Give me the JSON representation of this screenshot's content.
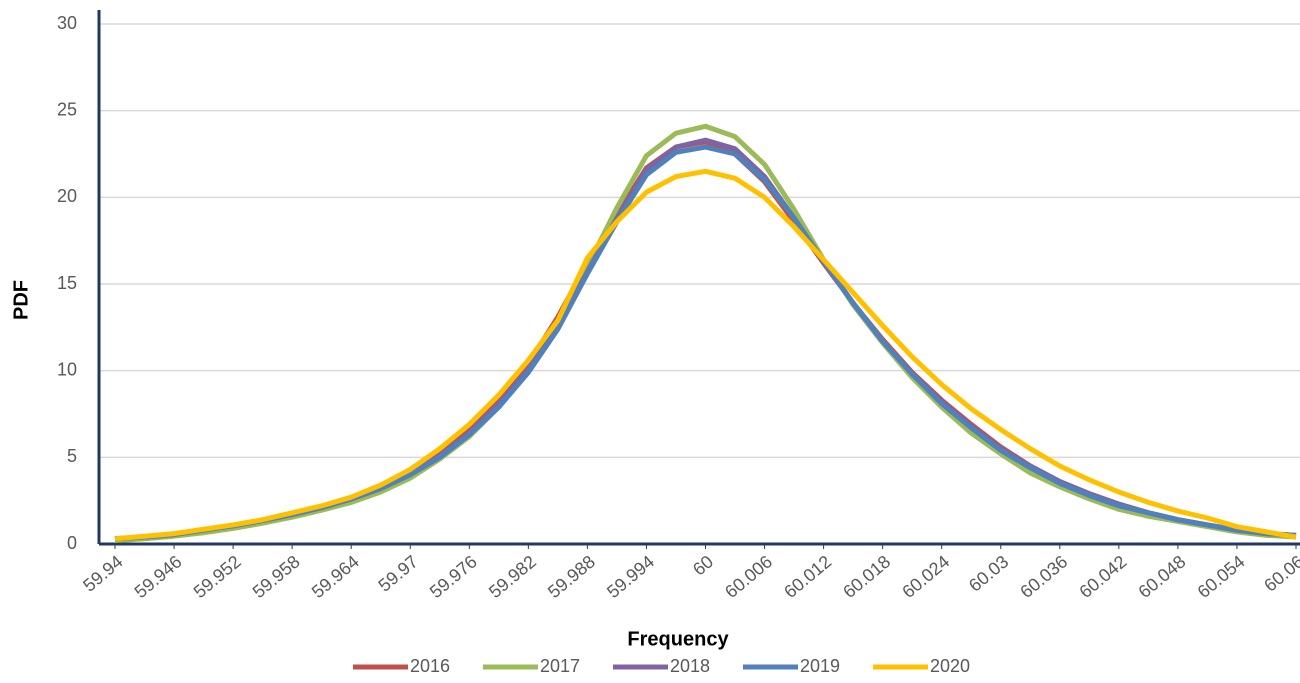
{
  "chart_data": {
    "type": "line",
    "x_label": "Frequency",
    "y_label": "PDF",
    "x": [
      59.94,
      59.943,
      59.946,
      59.949,
      59.952,
      59.955,
      59.958,
      59.961,
      59.964,
      59.967,
      59.97,
      59.973,
      59.976,
      59.979,
      59.982,
      59.985,
      59.988,
      59.991,
      59.994,
      59.997,
      60,
      60.003,
      60.006,
      60.009,
      60.012,
      60.015,
      60.018,
      60.021,
      60.024,
      60.027,
      60.03,
      60.033,
      60.036,
      60.039,
      60.042,
      60.045,
      60.048,
      60.051,
      60.054,
      60.057,
      60.06
    ],
    "xlim": [
      59.94,
      60.06
    ],
    "xticks": [
      59.94,
      59.946,
      59.952,
      59.958,
      59.964,
      59.97,
      59.976,
      59.982,
      59.988,
      59.994,
      60,
      60.006,
      60.012,
      60.018,
      60.024,
      60.03,
      60.036,
      60.042,
      60.048,
      60.054,
      60.06
    ],
    "ylim": [
      0,
      30
    ],
    "yticks": [
      0,
      5,
      10,
      15,
      20,
      25,
      30
    ],
    "grid": true,
    "legend": "bottom",
    "series": [
      {
        "name": "2016",
        "color": "#c0504d",
        "values": [
          0.3,
          0.4,
          0.55,
          0.8,
          1.05,
          1.35,
          1.7,
          2.1,
          2.6,
          3.2,
          4.1,
          5.2,
          6.6,
          8.3,
          10.4,
          13.1,
          16.2,
          19.0,
          21.7,
          22.9,
          23.2,
          22.5,
          20.9,
          18.6,
          16.2,
          13.9,
          11.8,
          9.9,
          8.3,
          6.9,
          5.6,
          4.5,
          3.6,
          2.9,
          2.3,
          1.8,
          1.4,
          1.1,
          0.8,
          0.6,
          0.5
        ]
      },
      {
        "name": "2017",
        "color": "#9bbb59",
        "values": [
          0.2,
          0.3,
          0.45,
          0.65,
          0.9,
          1.2,
          1.55,
          1.95,
          2.4,
          3.0,
          3.8,
          4.9,
          6.2,
          7.9,
          10.0,
          12.7,
          16.0,
          19.4,
          22.4,
          23.7,
          24.1,
          23.5,
          21.9,
          19.3,
          16.4,
          13.8,
          11.6,
          9.6,
          7.9,
          6.4,
          5.2,
          4.1,
          3.3,
          2.6,
          2.0,
          1.6,
          1.3,
          1.0,
          0.7,
          0.5,
          0.4
        ]
      },
      {
        "name": "2018",
        "color": "#8064a2",
        "values": [
          0.3,
          0.4,
          0.55,
          0.8,
          1.05,
          1.35,
          1.7,
          2.1,
          2.6,
          3.2,
          4.0,
          5.1,
          6.4,
          8.1,
          10.1,
          12.6,
          15.7,
          18.8,
          21.6,
          22.9,
          23.3,
          22.8,
          21.2,
          18.8,
          16.3,
          13.9,
          11.7,
          9.8,
          8.2,
          6.8,
          5.5,
          4.5,
          3.6,
          2.9,
          2.3,
          1.8,
          1.4,
          1.1,
          0.8,
          0.6,
          0.5
        ]
      },
      {
        "name": "2019",
        "color": "#4f81bd",
        "values": [
          0.3,
          0.4,
          0.55,
          0.8,
          1.05,
          1.35,
          1.7,
          2.1,
          2.6,
          3.2,
          4.0,
          5.0,
          6.3,
          7.9,
          9.9,
          12.4,
          15.6,
          18.6,
          21.3,
          22.6,
          22.9,
          22.5,
          21.0,
          18.8,
          16.3,
          13.9,
          11.7,
          9.8,
          8.1,
          6.7,
          5.4,
          4.4,
          3.5,
          2.8,
          2.2,
          1.8,
          1.4,
          1.1,
          0.8,
          0.6,
          0.5
        ]
      },
      {
        "name": "2020",
        "color": "#ffc000",
        "values": [
          0.3,
          0.45,
          0.6,
          0.85,
          1.1,
          1.4,
          1.8,
          2.2,
          2.7,
          3.4,
          4.3,
          5.5,
          6.9,
          8.6,
          10.6,
          12.9,
          16.5,
          18.6,
          20.3,
          21.2,
          21.5,
          21.1,
          20.0,
          18.3,
          16.4,
          14.5,
          12.6,
          10.8,
          9.2,
          7.8,
          6.6,
          5.5,
          4.5,
          3.7,
          3.0,
          2.4,
          1.9,
          1.5,
          1.0,
          0.7,
          0.4
        ]
      }
    ]
  }
}
